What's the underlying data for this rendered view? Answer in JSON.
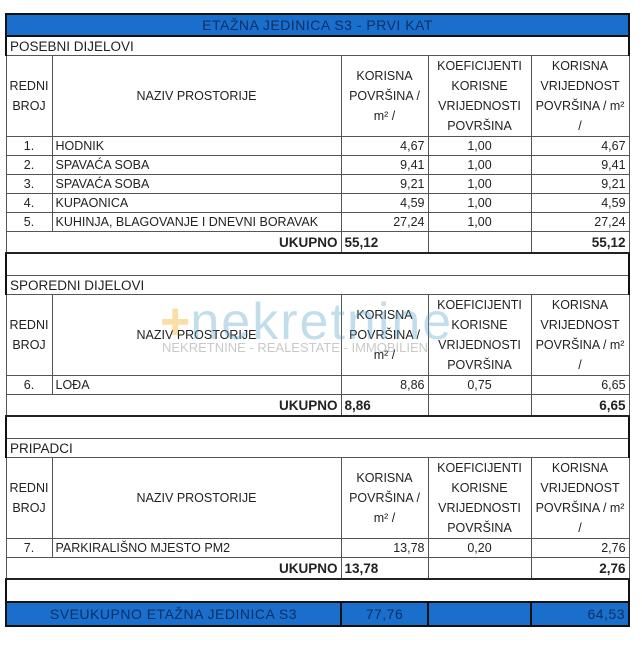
{
  "title": "ETAŽNA JEDINICA S3 - PRVI KAT",
  "headers": {
    "redni": "REDNI BROJ",
    "naziv": "NAZIV PROSTORIJE",
    "korisna": "KORISNA POVRŠINA / m² /",
    "koef": "KOEFICIJENTI KORISNE VRIJEDNOSTI POVRŠINA",
    "vrijednost": "KORISNA VRIJEDNOST POVRŠINA / m² /"
  },
  "total_label": "UKUPNO",
  "sections": [
    {
      "name": "POSEBNI DIJELOVI",
      "rows": [
        {
          "no": "1.",
          "name": "HODNIK",
          "area": "4,67",
          "coef": "1,00",
          "value": "4,67"
        },
        {
          "no": "2.",
          "name": "SPAVAĆA SOBA",
          "area": "9,41",
          "coef": "1,00",
          "value": "9,41"
        },
        {
          "no": "3.",
          "name": "SPAVAĆA SOBA",
          "area": "9,21",
          "coef": "1,00",
          "value": "9,21"
        },
        {
          "no": "4.",
          "name": "KUPAONICA",
          "area": "4,59",
          "coef": "1,00",
          "value": "4,59"
        },
        {
          "no": "5.",
          "name": "KUHINJA, BLAGOVANJE I DNEVNI BORAVAK",
          "area": "27,24",
          "coef": "1,00",
          "value": "27,24"
        }
      ],
      "total_area": "55,12",
      "total_value": "55,12"
    },
    {
      "name": "SPOREDNI DIJELOVI",
      "rows": [
        {
          "no": "6.",
          "name": "LOĐA",
          "area": "8,86",
          "coef": "0,75",
          "value": "6,65"
        }
      ],
      "total_area": "8,86",
      "total_value": "6,65"
    },
    {
      "name": "PRIPADCI",
      "rows": [
        {
          "no": "7.",
          "name": "PARKIRALIŠNO MJESTO PM2",
          "area": "13,78",
          "coef": "0,20",
          "value": "2,76"
        }
      ],
      "total_area": "13,78",
      "total_value": "2,76"
    }
  ],
  "grand_total": {
    "label": "SVEUKUPNO ETAŽNA JEDINICA S3",
    "area": "77,76",
    "value": "64,53"
  },
  "watermark": {
    "logo": "nekretnine",
    "tagline": "NEKRETNINE - REALESTATE - IMMOBILIEN"
  },
  "colors": {
    "header_blue": "#1a6fcc",
    "header_text": "#0d2f66"
  }
}
